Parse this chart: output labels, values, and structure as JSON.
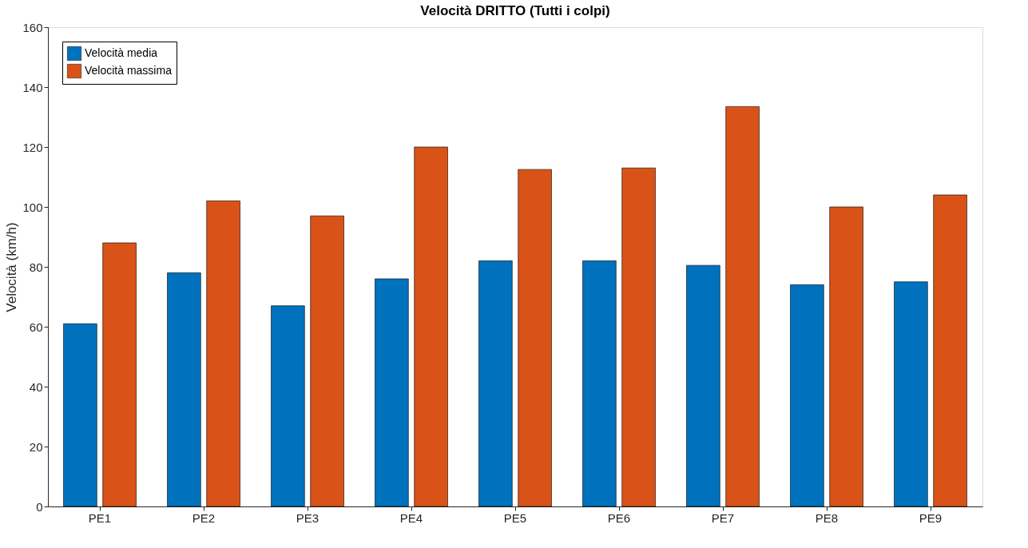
{
  "chart_data": {
    "type": "bar",
    "title": "Velocità DRITTO (Tutti i colpi)",
    "ylabel": "Velocità (km/h)",
    "categories": [
      "PE1",
      "PE2",
      "PE3",
      "PE4",
      "PE5",
      "PE6",
      "PE7",
      "PE8",
      "PE9"
    ],
    "series": [
      {
        "name": "Velocità media",
        "color": "#0072bd",
        "values": [
          61,
          78,
          67,
          76,
          82,
          82,
          80.5,
          74,
          75
        ]
      },
      {
        "name": "Velocità massima",
        "color": "#d95319",
        "values": [
          88,
          102,
          97,
          120,
          112.5,
          113,
          133.5,
          100,
          104
        ]
      }
    ],
    "ylim": [
      0,
      160
    ],
    "yticks": [
      0,
      20,
      40,
      60,
      80,
      100,
      120,
      140,
      160
    ],
    "grid": false,
    "legend": "top left"
  }
}
